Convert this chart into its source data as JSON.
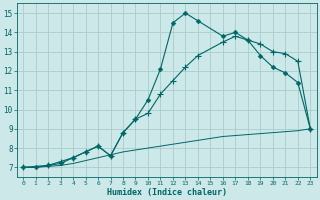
{
  "xlabel": "Humidex (Indice chaleur)",
  "bg_color": "#cce8e8",
  "grid_color": "#aacccc",
  "line_color": "#006666",
  "xlim": [
    -0.5,
    23.5
  ],
  "ylim": [
    6.5,
    15.5
  ],
  "xticks": [
    0,
    1,
    2,
    3,
    4,
    5,
    6,
    7,
    8,
    9,
    10,
    11,
    12,
    13,
    14,
    15,
    16,
    17,
    18,
    19,
    20,
    21,
    22,
    23
  ],
  "yticks": [
    7,
    8,
    9,
    10,
    11,
    12,
    13,
    14,
    15
  ],
  "line1_x": [
    0,
    1,
    2,
    3,
    4,
    5,
    6,
    7,
    8,
    9,
    10,
    11,
    12,
    13,
    14,
    16,
    17,
    18,
    19,
    20,
    21,
    22,
    23
  ],
  "line1_y": [
    7.0,
    7.0,
    7.1,
    7.2,
    7.5,
    7.8,
    8.1,
    7.6,
    8.8,
    9.5,
    10.5,
    12.1,
    14.5,
    15.0,
    14.6,
    13.8,
    14.0,
    13.6,
    12.8,
    12.2,
    11.9,
    11.4,
    9.0
  ],
  "line2_x": [
    0,
    2,
    3,
    4,
    5,
    6,
    7,
    8,
    9,
    10,
    11,
    12,
    13,
    14,
    16,
    17,
    18,
    19,
    20,
    21,
    22,
    23
  ],
  "line2_y": [
    7.0,
    7.1,
    7.3,
    7.5,
    7.8,
    8.1,
    7.6,
    8.8,
    9.5,
    9.8,
    10.8,
    11.5,
    12.2,
    12.8,
    13.5,
    13.8,
    13.6,
    13.4,
    13.0,
    12.9,
    12.5,
    9.0
  ],
  "line3_x": [
    0,
    1,
    2,
    3,
    4,
    5,
    6,
    7,
    8,
    9,
    10,
    11,
    12,
    13,
    14,
    15,
    16,
    17,
    18,
    19,
    20,
    21,
    22,
    23
  ],
  "line3_y": [
    7.0,
    7.0,
    7.05,
    7.1,
    7.2,
    7.35,
    7.5,
    7.65,
    7.8,
    7.9,
    8.0,
    8.1,
    8.2,
    8.3,
    8.4,
    8.5,
    8.6,
    8.65,
    8.7,
    8.75,
    8.8,
    8.85,
    8.9,
    9.0
  ]
}
